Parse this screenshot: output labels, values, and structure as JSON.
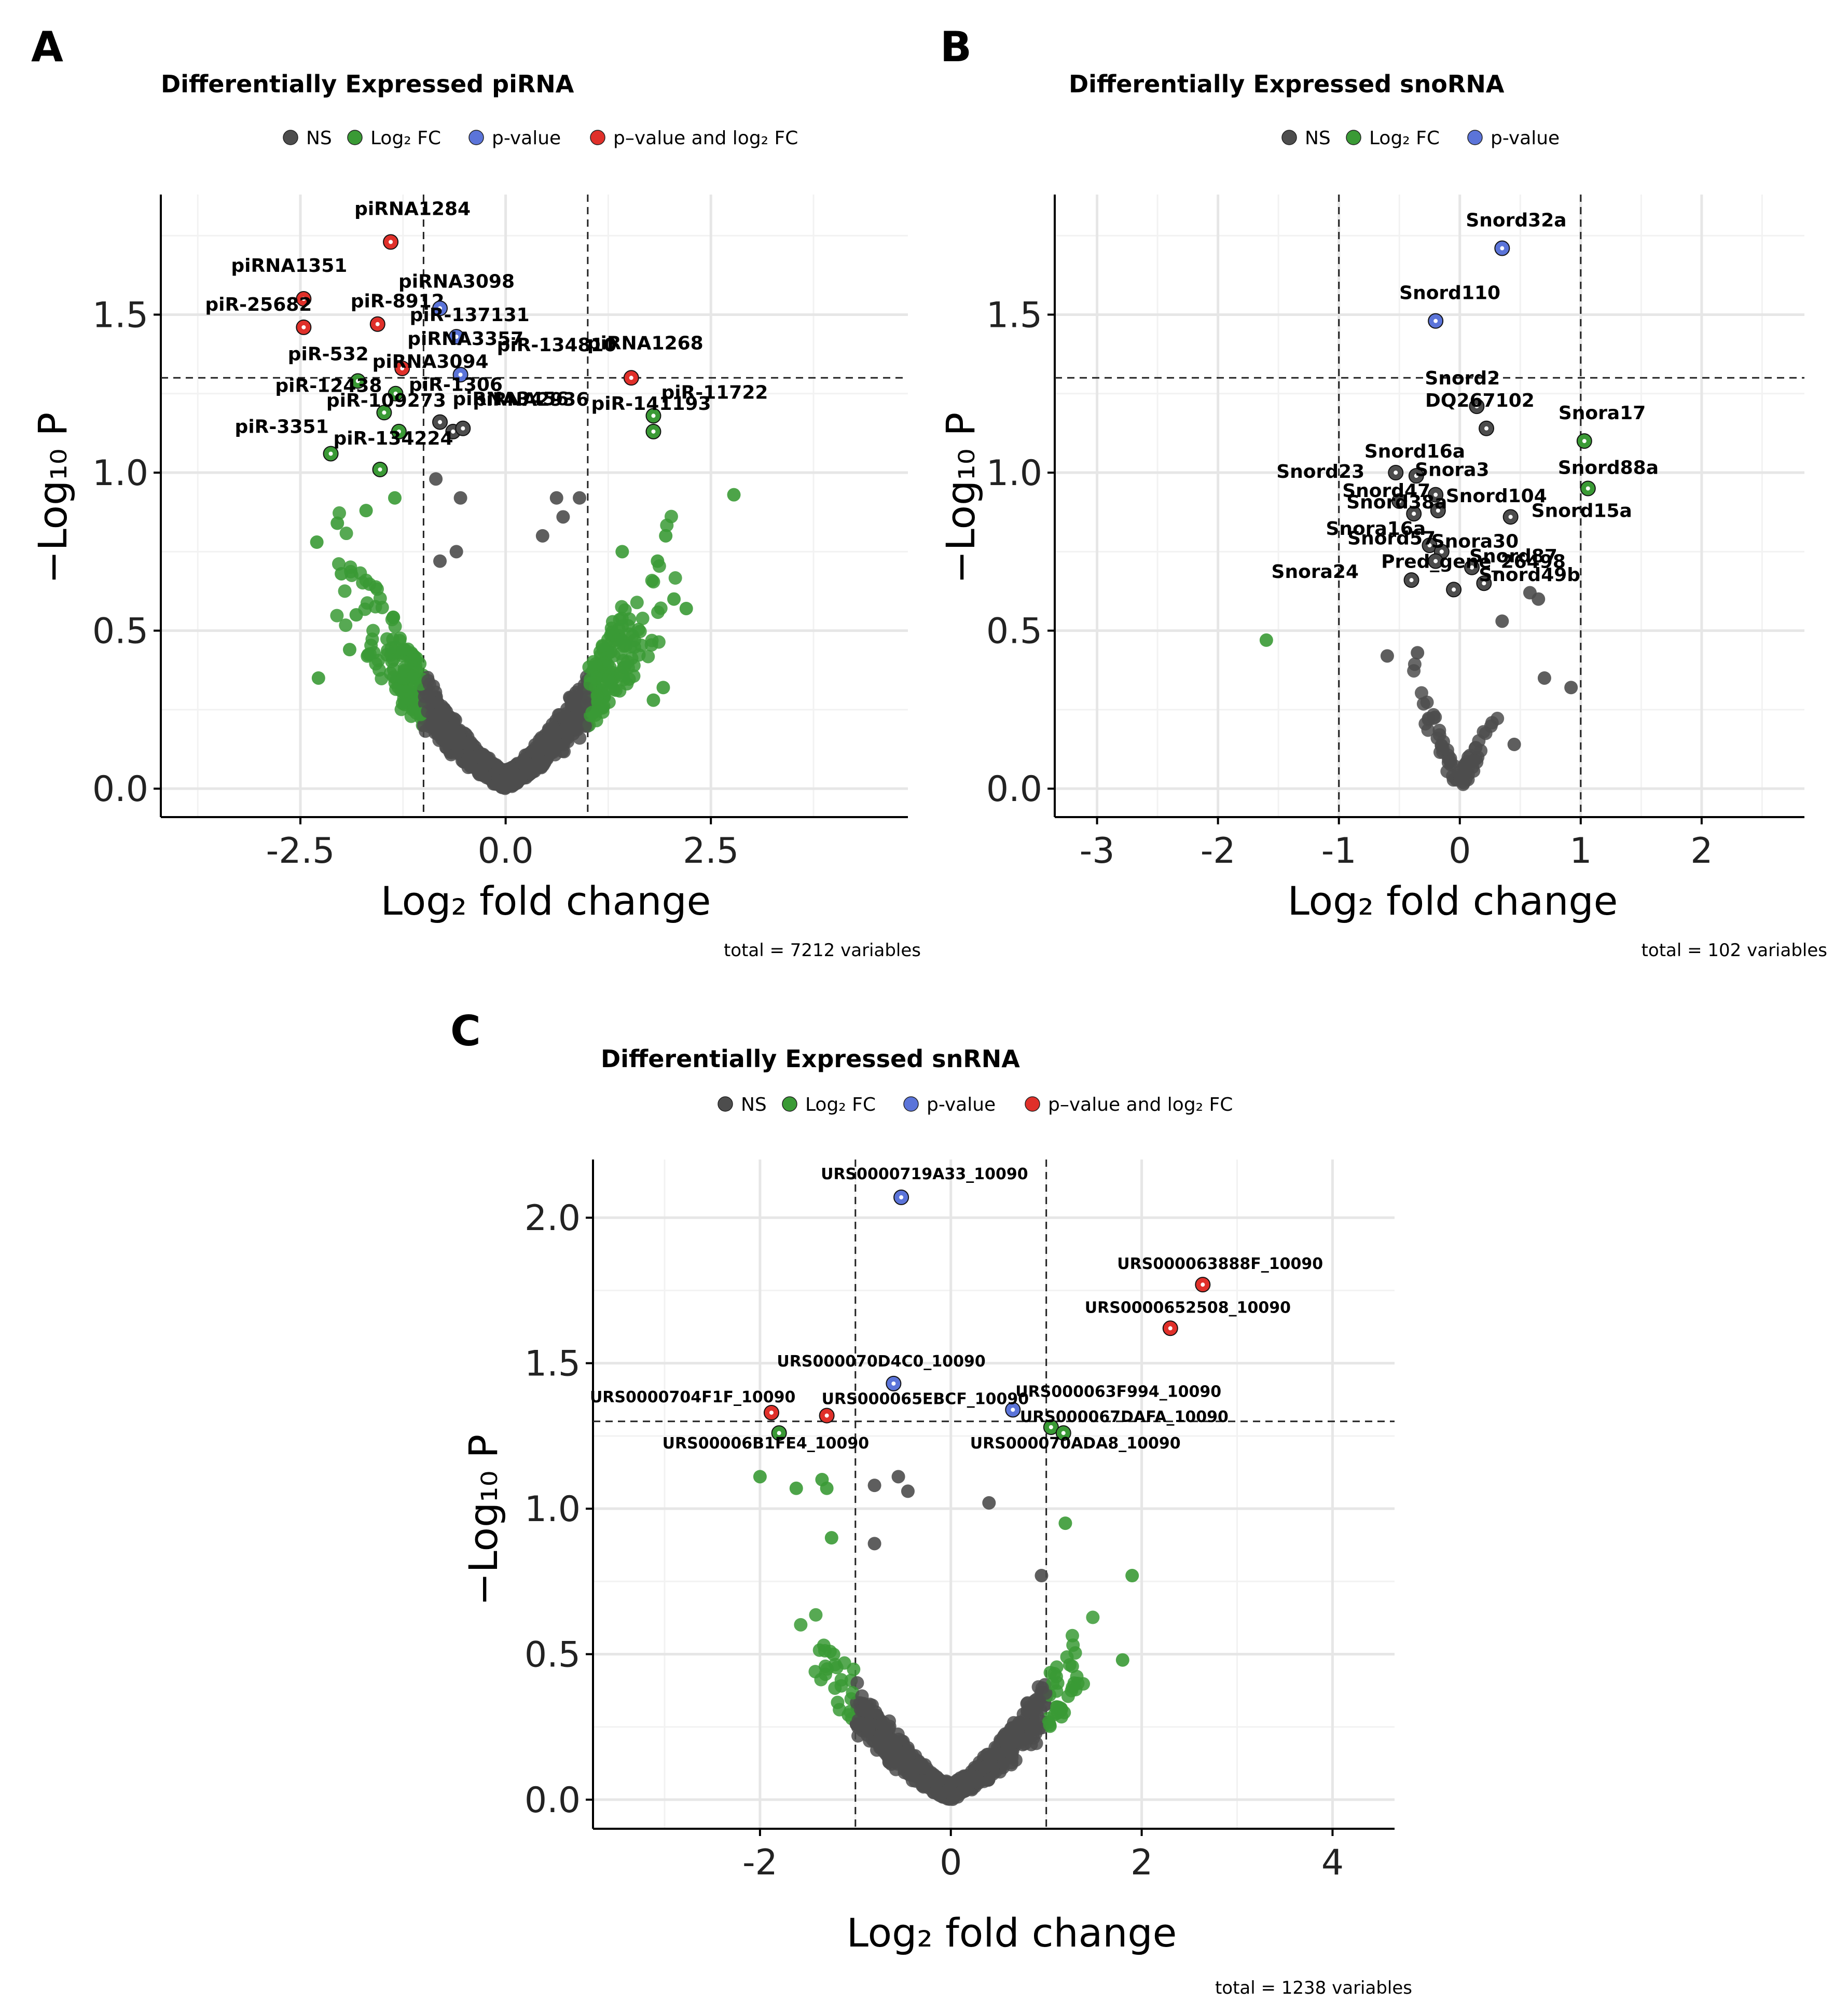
{
  "colors": {
    "NS": "#4d4d4d",
    "Log2FC": "#3a9a35",
    "pvalue": "#5b74d9",
    "pvalue_and_log2FC": "#e0302a"
  },
  "chart_data": [
    {
      "panel": "A",
      "type": "scatter",
      "title": "Differentially Expressed piRNA",
      "legend": [
        {
          "key": "NS",
          "label": "NS"
        },
        {
          "key": "Log2FC",
          "label": "Log₂ FC"
        },
        {
          "key": "pvalue",
          "label": "p-value"
        },
        {
          "key": "pvalue_and_log2FC",
          "label": "p–value and log₂ FC"
        }
      ],
      "xlabel": "Log₂ fold change",
      "ylabel": "−Log₁₀ P",
      "xlim": [
        -4.2,
        4.9
      ],
      "ylim": [
        -0.09,
        1.88
      ],
      "xticks": [
        -2.5,
        0.0,
        2.5
      ],
      "xtick_labels": [
        "-2.5",
        "0.0",
        "2.5"
      ],
      "yticks": [
        0.0,
        0.5,
        1.0,
        1.5
      ],
      "ytick_labels": [
        "0.0",
        "0.5",
        "1.0",
        "1.5"
      ],
      "fc_cutoffs": [
        -1,
        1
      ],
      "p_cutoff": 1.3,
      "caption": "total = 7212 variables",
      "labeled_points": [
        {
          "x": -1.4,
          "y": 1.73,
          "g": "pvalue_and_log2FC",
          "label": "piRNA1284"
        },
        {
          "x": -2.46,
          "y": 1.55,
          "g": "pvalue_and_log2FC",
          "label": "piRNA1351"
        },
        {
          "x": -2.46,
          "y": 1.46,
          "g": "pvalue_and_log2FC",
          "label": "piR-25682"
        },
        {
          "x": -1.56,
          "y": 1.47,
          "g": "pvalue_and_log2FC",
          "label": "piR-8912"
        },
        {
          "x": -0.8,
          "y": 1.52,
          "g": "pvalue",
          "label": "piRNA3098"
        },
        {
          "x": -0.6,
          "y": 1.43,
          "g": "pvalue",
          "label": "piR-137131"
        },
        {
          "x": -1.26,
          "y": 1.33,
          "g": "pvalue_and_log2FC",
          "label": "piRNA3357"
        },
        {
          "x": -0.55,
          "y": 1.31,
          "g": "pvalue",
          "label": "piR-134810"
        },
        {
          "x": 1.53,
          "y": 1.3,
          "g": "pvalue_and_log2FC",
          "label": "piRNA1268"
        },
        {
          "x": -1.8,
          "y": 1.29,
          "g": "Log2FC",
          "label": "piR-532"
        },
        {
          "x": -1.34,
          "y": 1.25,
          "g": "Log2FC",
          "label": "piRNA3094"
        },
        {
          "x": -1.48,
          "y": 1.19,
          "g": "Log2FC",
          "label": "piR-12438"
        },
        {
          "x": -0.8,
          "y": 1.16,
          "g": "NS",
          "label": "piR-1306"
        },
        {
          "x": 1.8,
          "y": 1.18,
          "g": "Log2FC",
          "label": "piR-11722"
        },
        {
          "x": -0.64,
          "y": 1.13,
          "g": "NS",
          "label": "piRNA2936"
        },
        {
          "x": -0.52,
          "y": 1.14,
          "g": "NS",
          "label": "piRNA3456"
        },
        {
          "x": -1.3,
          "y": 1.13,
          "g": "Log2FC",
          "label": "piR-109273"
        },
        {
          "x": 1.8,
          "y": 1.13,
          "g": "Log2FC",
          "label": "piR-141193"
        },
        {
          "x": -2.13,
          "y": 1.06,
          "g": "Log2FC",
          "label": "piR-3351"
        },
        {
          "x": -1.53,
          "y": 1.01,
          "g": "Log2FC",
          "label": "piR-134224"
        }
      ],
      "extra_points": [
        {
          "x": 2.78,
          "y": 0.93,
          "g": "Log2FC"
        },
        {
          "x": 1.95,
          "y": 0.8,
          "g": "Log2FC"
        },
        {
          "x": 1.85,
          "y": 0.72,
          "g": "Log2FC"
        },
        {
          "x": 2.05,
          "y": 0.6,
          "g": "Log2FC"
        },
        {
          "x": 2.2,
          "y": 0.57,
          "g": "Log2FC"
        },
        {
          "x": 1.92,
          "y": 0.32,
          "g": "Log2FC"
        },
        {
          "x": 1.8,
          "y": 0.28,
          "g": "Log2FC"
        },
        {
          "x": 1.42,
          "y": 0.75,
          "g": "Log2FC"
        },
        {
          "x": -2.28,
          "y": 0.35,
          "g": "Log2FC"
        },
        {
          "x": -2.3,
          "y": 0.78,
          "g": "Log2FC"
        },
        {
          "x": -2.05,
          "y": 0.84,
          "g": "Log2FC"
        },
        {
          "x": -1.7,
          "y": 0.88,
          "g": "Log2FC"
        },
        {
          "x": -1.82,
          "y": 0.55,
          "g": "Log2FC"
        },
        {
          "x": -1.35,
          "y": 0.92,
          "g": "Log2FC"
        },
        {
          "x": -2.0,
          "y": 0.68,
          "g": "Log2FC"
        },
        {
          "x": -1.9,
          "y": 0.44,
          "g": "Log2FC"
        },
        {
          "x": -0.85,
          "y": 0.98,
          "g": "NS"
        },
        {
          "x": -0.55,
          "y": 0.92,
          "g": "NS"
        },
        {
          "x": 0.62,
          "y": 0.92,
          "g": "NS"
        },
        {
          "x": 0.9,
          "y": 0.92,
          "g": "NS"
        },
        {
          "x": -0.6,
          "y": 0.75,
          "g": "NS"
        },
        {
          "x": 0.45,
          "y": 0.8,
          "g": "NS"
        },
        {
          "x": 0.7,
          "y": 0.86,
          "g": "NS"
        },
        {
          "x": -0.8,
          "y": 0.72,
          "g": "NS"
        }
      ],
      "cloud": {
        "n": 1400,
        "xspread": 1.05,
        "ymax": 0.98,
        "x_extent": 2.25,
        "seed": 11
      }
    },
    {
      "panel": "B",
      "type": "scatter",
      "title": "Differentially Expressed snoRNA",
      "legend": [
        {
          "key": "NS",
          "label": "NS"
        },
        {
          "key": "Log2FC",
          "label": "Log₂ FC"
        },
        {
          "key": "pvalue",
          "label": "p-value"
        }
      ],
      "xlabel": "Log₂ fold change",
      "ylabel": "−Log₁₀ P",
      "xlim": [
        -3.35,
        2.85
      ],
      "ylim": [
        -0.09,
        1.88
      ],
      "xticks": [
        -3,
        -2,
        -1,
        0,
        1,
        2
      ],
      "xtick_labels": [
        "-3",
        "-2",
        "-1",
        "0",
        "1",
        "2"
      ],
      "yticks": [
        0.0,
        0.5,
        1.0,
        1.5
      ],
      "ytick_labels": [
        "0.0",
        "0.5",
        "1.0",
        "1.5"
      ],
      "fc_cutoffs": [
        -1,
        1
      ],
      "p_cutoff": 1.3,
      "caption": "total = 102 variables",
      "labeled_points": [
        {
          "x": 0.35,
          "y": 1.71,
          "g": "pvalue",
          "label": "Snord32a"
        },
        {
          "x": -0.2,
          "y": 1.48,
          "g": "pvalue",
          "label": "Snord110"
        },
        {
          "x": 0.14,
          "y": 1.21,
          "g": "NS",
          "label": "Snord2"
        },
        {
          "x": 0.22,
          "y": 1.14,
          "g": "NS",
          "label": "DQ267102"
        },
        {
          "x": 1.03,
          "y": 1.1,
          "g": "Log2FC",
          "label": "Snora17"
        },
        {
          "x": 1.06,
          "y": 0.95,
          "g": "Log2FC",
          "label": "Snord88a"
        },
        {
          "x": -0.53,
          "y": 1.0,
          "g": "NS",
          "label": "Snord23"
        },
        {
          "x": -0.36,
          "y": 0.99,
          "g": "NS",
          "label": "Snord16a"
        },
        {
          "x": -0.2,
          "y": 0.93,
          "g": "NS",
          "label": "Snora3"
        },
        {
          "x": -0.5,
          "y": 0.91,
          "g": "NS",
          "label": "Snord47"
        },
        {
          "x": -0.18,
          "y": 0.88,
          "g": "NS",
          "label": "Snord104"
        },
        {
          "x": -0.38,
          "y": 0.87,
          "g": "NS",
          "label": "Snord38a"
        },
        {
          "x": 0.42,
          "y": 0.86,
          "g": "NS",
          "label": "Snord15a"
        },
        {
          "x": -0.25,
          "y": 0.77,
          "g": "NS",
          "label": "Snora16a"
        },
        {
          "x": -0.15,
          "y": 0.75,
          "g": "NS",
          "label": "Snora30"
        },
        {
          "x": -0.2,
          "y": 0.72,
          "g": "NS",
          "label": "Snord57"
        },
        {
          "x": 0.1,
          "y": 0.7,
          "g": "NS",
          "label": "Snord87"
        },
        {
          "x": -0.4,
          "y": 0.66,
          "g": "NS",
          "label": "Snora24"
        },
        {
          "x": 0.2,
          "y": 0.65,
          "g": "NS",
          "label": "Snord49b"
        },
        {
          "x": -0.05,
          "y": 0.63,
          "g": "NS",
          "label": "Pred_gene_26498"
        }
      ],
      "extra_points": [
        {
          "x": -1.6,
          "y": 0.47,
          "g": "Log2FC"
        },
        {
          "x": 0.7,
          "y": 0.35,
          "g": "NS"
        },
        {
          "x": 0.92,
          "y": 0.32,
          "g": "NS"
        },
        {
          "x": 0.45,
          "y": 0.14,
          "g": "NS"
        },
        {
          "x": -0.6,
          "y": 0.42,
          "g": "NS"
        },
        {
          "x": 0.58,
          "y": 0.62,
          "g": "NS"
        },
        {
          "x": 0.65,
          "y": 0.6,
          "g": "NS"
        },
        {
          "x": 0.35,
          "y": 0.53,
          "g": "NS"
        },
        {
          "x": -0.35,
          "y": 0.43,
          "g": "NS"
        }
      ],
      "cloud": {
        "n": 70,
        "xspread": 0.17,
        "ymax": 0.62,
        "x_extent": 0.5,
        "seed": 5
      }
    },
    {
      "panel": "C",
      "type": "scatter",
      "title": "Differentially Expressed snRNA",
      "legend": [
        {
          "key": "NS",
          "label": "NS"
        },
        {
          "key": "Log2FC",
          "label": "Log₂ FC"
        },
        {
          "key": "pvalue",
          "label": "p-value"
        },
        {
          "key": "pvalue_and_log2FC",
          "label": "p–value and log₂ FC"
        }
      ],
      "xlabel": "Log₂ fold change",
      "ylabel": "−Log₁₀ P",
      "xlim": [
        -3.75,
        4.65
      ],
      "ylim": [
        -0.1,
        2.2
      ],
      "xticks": [
        -2,
        0,
        2,
        4
      ],
      "xtick_labels": [
        "-2",
        "0",
        "2",
        "4"
      ],
      "yticks": [
        0.0,
        0.5,
        1.0,
        1.5,
        2.0
      ],
      "ytick_labels": [
        "0.0",
        "0.5",
        "1.0",
        "1.5",
        "2.0"
      ],
      "fc_cutoffs": [
        -1,
        1
      ],
      "p_cutoff": 1.3,
      "caption": "total = 1238 variables",
      "labeled_points": [
        {
          "x": -0.52,
          "y": 2.07,
          "g": "pvalue",
          "label": "URS0000719A33_10090"
        },
        {
          "x": 2.64,
          "y": 1.77,
          "g": "pvalue_and_log2FC",
          "label": "URS000063888F_10090"
        },
        {
          "x": 2.3,
          "y": 1.62,
          "g": "pvalue_and_log2FC",
          "label": "URS0000652508_10090"
        },
        {
          "x": -0.6,
          "y": 1.43,
          "g": "pvalue",
          "label": "URS000070D4C0_10090"
        },
        {
          "x": 0.65,
          "y": 1.34,
          "g": "pvalue",
          "label": "URS000063F994_10090"
        },
        {
          "x": -1.88,
          "y": 1.33,
          "g": "pvalue_and_log2FC",
          "label": "URS0000704F1F_10090"
        },
        {
          "x": -1.3,
          "y": 1.32,
          "g": "pvalue_and_log2FC",
          "label": "URS000065EBCF_10090"
        },
        {
          "x": 1.05,
          "y": 1.28,
          "g": "Log2FC",
          "label": "URS000067DAFA_10090"
        },
        {
          "x": -1.8,
          "y": 1.26,
          "g": "Log2FC",
          "label": "URS00006B1FE4_10090"
        },
        {
          "x": 1.18,
          "y": 1.26,
          "g": "Log2FC",
          "label": "URS000070ADA8_10090"
        }
      ],
      "extra_points": [
        {
          "x": -2.0,
          "y": 1.11,
          "g": "Log2FC"
        },
        {
          "x": -1.62,
          "y": 1.07,
          "g": "Log2FC"
        },
        {
          "x": -1.35,
          "y": 1.1,
          "g": "Log2FC"
        },
        {
          "x": -1.3,
          "y": 1.07,
          "g": "Log2FC"
        },
        {
          "x": -1.25,
          "y": 0.9,
          "g": "Log2FC"
        },
        {
          "x": 1.9,
          "y": 0.77,
          "g": "Log2FC"
        },
        {
          "x": 1.8,
          "y": 0.48,
          "g": "Log2FC"
        },
        {
          "x": 1.2,
          "y": 0.95,
          "g": "Log2FC"
        },
        {
          "x": -0.55,
          "y": 1.11,
          "g": "NS"
        },
        {
          "x": 0.4,
          "y": 1.02,
          "g": "NS"
        },
        {
          "x": -0.8,
          "y": 1.08,
          "g": "NS"
        },
        {
          "x": -0.45,
          "y": 1.06,
          "g": "NS"
        },
        {
          "x": -0.8,
          "y": 0.88,
          "g": "NS"
        },
        {
          "x": 0.95,
          "y": 0.77,
          "g": "NS"
        }
      ],
      "cloud": {
        "n": 900,
        "xspread": 0.72,
        "ymax": 0.82,
        "x_extent": 1.75,
        "seed": 23
      }
    }
  ]
}
